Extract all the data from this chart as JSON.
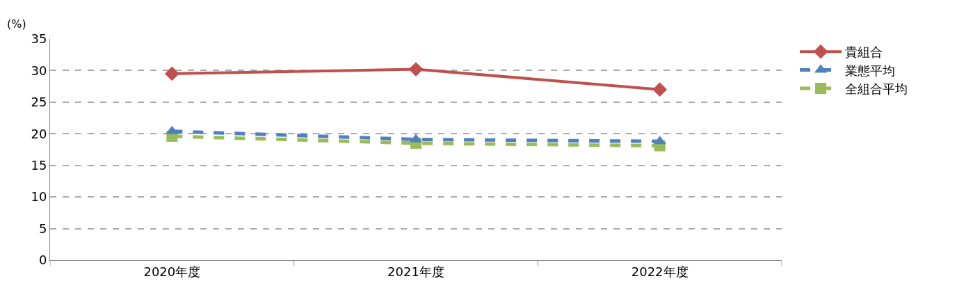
{
  "chart_data": {
    "type": "line",
    "ylabel": "(%)",
    "categories": [
      "2020年度",
      "2021年度",
      "2022年度"
    ],
    "series": [
      {
        "name": "貴組合",
        "color": "#c0504d",
        "values": [
          29.5,
          30.2,
          27.0
        ],
        "marker": "diamond",
        "line_style": "solid"
      },
      {
        "name": "業態平均",
        "color": "#4f81bd",
        "values": [
          20.4,
          19.1,
          18.8
        ],
        "marker": "triangle",
        "line_style": "dashed"
      },
      {
        "name": "全組合平均",
        "color": "#9bbb59",
        "values": [
          19.6,
          18.5,
          18.1
        ],
        "marker": "square",
        "line_style": "dashed"
      }
    ],
    "ylim": [
      0,
      35
    ],
    "yticks": [
      0,
      5,
      10,
      15,
      20,
      25,
      30,
      35
    ],
    "grid": "y",
    "legend": "top right"
  }
}
